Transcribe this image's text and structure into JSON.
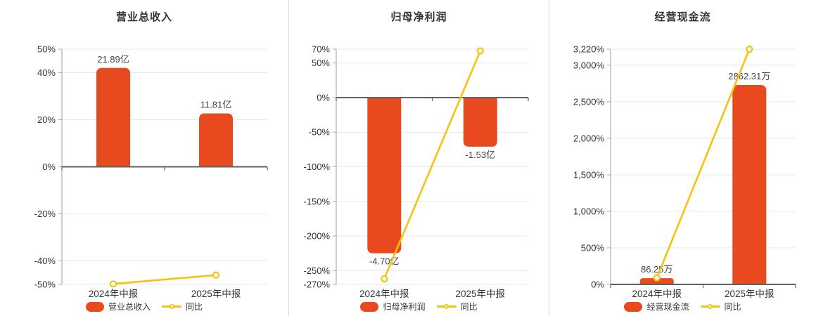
{
  "colors": {
    "bar": "#e8491f",
    "line": "#f2c40f",
    "marker_fill": "#ffffff",
    "grid": "#e4eaf2",
    "zero_line": "#5d6268",
    "axis_line": "#a9aeb5",
    "tick_text": "#333333",
    "value_label_text": "#444444",
    "divider": "#d4d9de",
    "background": "#ffffff"
  },
  "chart_data": [
    {
      "type": "bar",
      "title": "营业总收入",
      "categories": [
        "2024年中报",
        "2025年中报"
      ],
      "series": [
        {
          "name": "营业总收入",
          "type": "bar",
          "labels": [
            "21.89亿",
            "11.81亿"
          ],
          "axis_values_pct": [
            42,
            22.7
          ]
        },
        {
          "name": "同比",
          "type": "line",
          "values_pct": [
            -49.8,
            -46.05
          ]
        }
      ],
      "y_axis": {
        "min": -50,
        "max": 50,
        "ticks": [
          {
            "label": "50%",
            "value": 50
          },
          {
            "label": "40%",
            "value": 40
          },
          {
            "label": "20%",
            "value": 20
          },
          {
            "label": "0%",
            "value": 0
          },
          {
            "label": "-20%",
            "value": -20
          },
          {
            "label": "-40%",
            "value": -40
          },
          {
            "label": "-50%",
            "value": -50
          }
        ]
      },
      "legend": [
        "营业总收入",
        "同比"
      ],
      "legend_position": "bottom",
      "grid": true
    },
    {
      "type": "bar",
      "title": "归母净利润",
      "categories": [
        "2024年中报",
        "2025年中报"
      ],
      "series": [
        {
          "name": "归母净利润",
          "type": "bar",
          "labels": [
            "-4.70亿",
            "-1.53亿"
          ],
          "axis_values_pct": [
            -225,
            -71
          ]
        },
        {
          "name": "同比",
          "type": "line",
          "values_pct": [
            -262,
            67.45
          ]
        }
      ],
      "y_axis": {
        "min": -270,
        "max": 70,
        "ticks": [
          {
            "label": "70%",
            "value": 70
          },
          {
            "label": "50%",
            "value": 50
          },
          {
            "label": "0%",
            "value": 0
          },
          {
            "label": "-50%",
            "value": -50
          },
          {
            "label": "-100%",
            "value": -100
          },
          {
            "label": "-150%",
            "value": -150
          },
          {
            "label": "-200%",
            "value": -200
          },
          {
            "label": "-250%",
            "value": -250
          },
          {
            "label": "-270%",
            "value": -270
          }
        ]
      },
      "legend": [
        "归母净利润",
        "同比"
      ],
      "legend_position": "bottom",
      "grid": true
    },
    {
      "type": "bar",
      "title": "经营现金流",
      "categories": [
        "2024年中报",
        "2025年中报"
      ],
      "series": [
        {
          "name": "经营现金流",
          "type": "bar",
          "labels": [
            "86.25万",
            "2862.31万"
          ],
          "axis_values_pct": [
            85,
            2730
          ]
        },
        {
          "name": "同比",
          "type": "line",
          "values_pct": [
            90,
            3218.6
          ]
        }
      ],
      "y_axis": {
        "min": 0,
        "max": 3220,
        "ticks": [
          {
            "label": "3,220%",
            "value": 3220
          },
          {
            "label": "3,000%",
            "value": 3000
          },
          {
            "label": "2,500%",
            "value": 2500
          },
          {
            "label": "2,000%",
            "value": 2000
          },
          {
            "label": "1,500%",
            "value": 1500
          },
          {
            "label": "1,000%",
            "value": 1000
          },
          {
            "label": "500%",
            "value": 500
          },
          {
            "label": "0%",
            "value": 0
          }
        ]
      },
      "legend": [
        "经营现金流",
        "同比"
      ],
      "legend_position": "bottom",
      "grid": true
    }
  ]
}
